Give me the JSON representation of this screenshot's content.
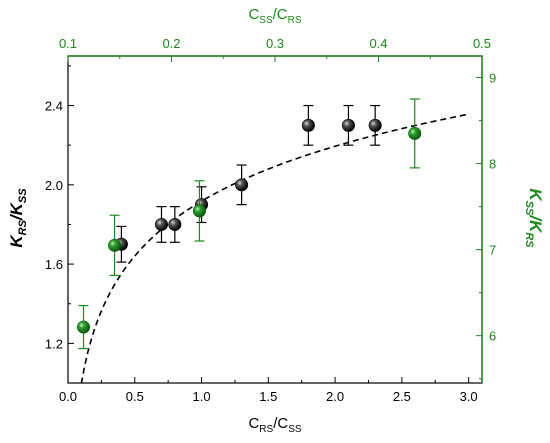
{
  "chart_data": {
    "type": "scatter",
    "colors": {
      "black_series": "#000000",
      "green_series": "#1a8a1a",
      "green_axis": "#1a8a1a",
      "fit_line": "#000000"
    },
    "axes": {
      "bottom": {
        "label_main": "C",
        "label_sub1": "RS",
        "label_mid": "/C",
        "label_sub2": "SS",
        "lim": [
          0,
          3.1
        ],
        "ticks": [
          0.0,
          0.5,
          1.0,
          1.5,
          2.0,
          2.5,
          3.0
        ],
        "tick_labels": [
          "0.0",
          "0.5",
          "1.0",
          "1.5",
          "2.0",
          "2.5",
          "3.0"
        ]
      },
      "top": {
        "label_main": "C",
        "label_sub1": "SS",
        "label_mid": "/C",
        "label_sub2": "RS",
        "lim": [
          0.1,
          0.5
        ],
        "ticks": [
          0.1,
          0.2,
          0.3,
          0.4,
          0.5
        ],
        "tick_labels": [
          "0.1",
          "0.2",
          "0.3",
          "0.4",
          "0.5"
        ]
      },
      "left": {
        "label_main": "K",
        "label_sub1": "RS",
        "label_mid": "/K",
        "label_sub2": "SS",
        "lim": [
          1.0,
          2.65
        ],
        "ticks": [
          1.2,
          1.6,
          2.0,
          2.4
        ],
        "tick_labels": [
          "1.2",
          "1.6",
          "2.0",
          "2.4"
        ]
      },
      "right": {
        "label_main": "K",
        "label_sub1": "SS",
        "label_mid": "/K",
        "label_sub2": "RS",
        "lim": [
          5.45,
          9.25
        ],
        "ticks": [
          6,
          7,
          8,
          9
        ],
        "tick_labels": [
          "6",
          "7",
          "8",
          "9"
        ]
      }
    },
    "series": [
      {
        "axis": "bottom-left",
        "points": [
          {
            "x": 0.4,
            "y": 1.7,
            "err": 0.09
          },
          {
            "x": 0.7,
            "y": 1.8,
            "err": 0.09
          },
          {
            "x": 0.8,
            "y": 1.8,
            "err": 0.09
          },
          {
            "x": 1.0,
            "y": 1.9,
            "err": 0.09
          },
          {
            "x": 1.3,
            "y": 2.0,
            "err": 0.1
          },
          {
            "x": 1.8,
            "y": 2.3,
            "err": 0.1
          },
          {
            "x": 2.1,
            "y": 2.3,
            "err": 0.1
          },
          {
            "x": 2.3,
            "y": 2.3,
            "err": 0.1
          }
        ]
      },
      {
        "axis": "top-right",
        "points": [
          {
            "x": 0.115,
            "y": 6.1,
            "err": 0.25
          },
          {
            "x": 0.145,
            "y": 7.05,
            "err": 0.35
          },
          {
            "x": 0.227,
            "y": 7.45,
            "err": 0.35
          },
          {
            "x": 0.435,
            "y": 8.35,
            "err": 0.4
          }
        ]
      }
    ],
    "fit_curve": {
      "axis": "bottom-left",
      "style": "dashed",
      "points": [
        [
          0.1,
          1.04
        ],
        [
          0.15,
          1.19
        ],
        [
          0.2,
          1.29
        ],
        [
          0.3,
          1.43
        ],
        [
          0.4,
          1.53
        ],
        [
          0.5,
          1.61
        ],
        [
          0.7,
          1.73
        ],
        [
          1.0,
          1.87
        ],
        [
          1.3,
          1.98
        ],
        [
          1.5,
          2.05
        ],
        [
          2.0,
          2.2
        ],
        [
          2.5,
          2.33
        ],
        [
          3.0,
          2.44
        ]
      ]
    }
  }
}
